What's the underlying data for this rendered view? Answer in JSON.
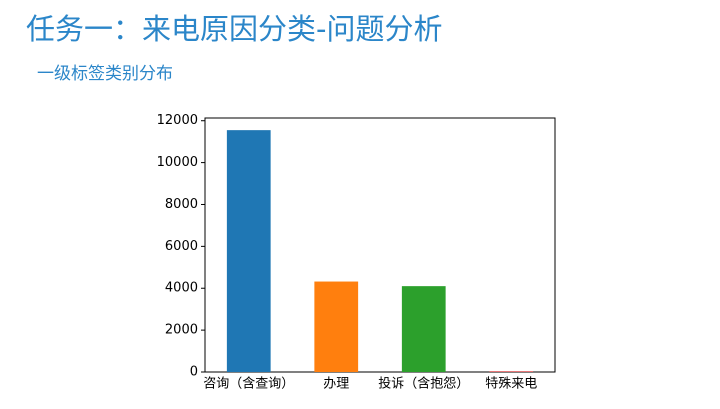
{
  "chart_data": {
    "type": "bar",
    "title": "任务一：来电原因分类-问题分析",
    "subtitle": "一级标签类别分布",
    "categories": [
      "咨询（含查询）",
      "办理",
      "投诉（含抱怨）",
      "特殊来电"
    ],
    "values": [
      11550,
      4320,
      4100,
      30
    ],
    "colors": [
      "#1f77b4",
      "#ff7f0e",
      "#2ca02c",
      "#d62728"
    ],
    "ylim": [
      0,
      12130
    ],
    "yticks": [
      0,
      2000,
      4000,
      6000,
      8000,
      10000,
      12000
    ],
    "grid": false
  }
}
